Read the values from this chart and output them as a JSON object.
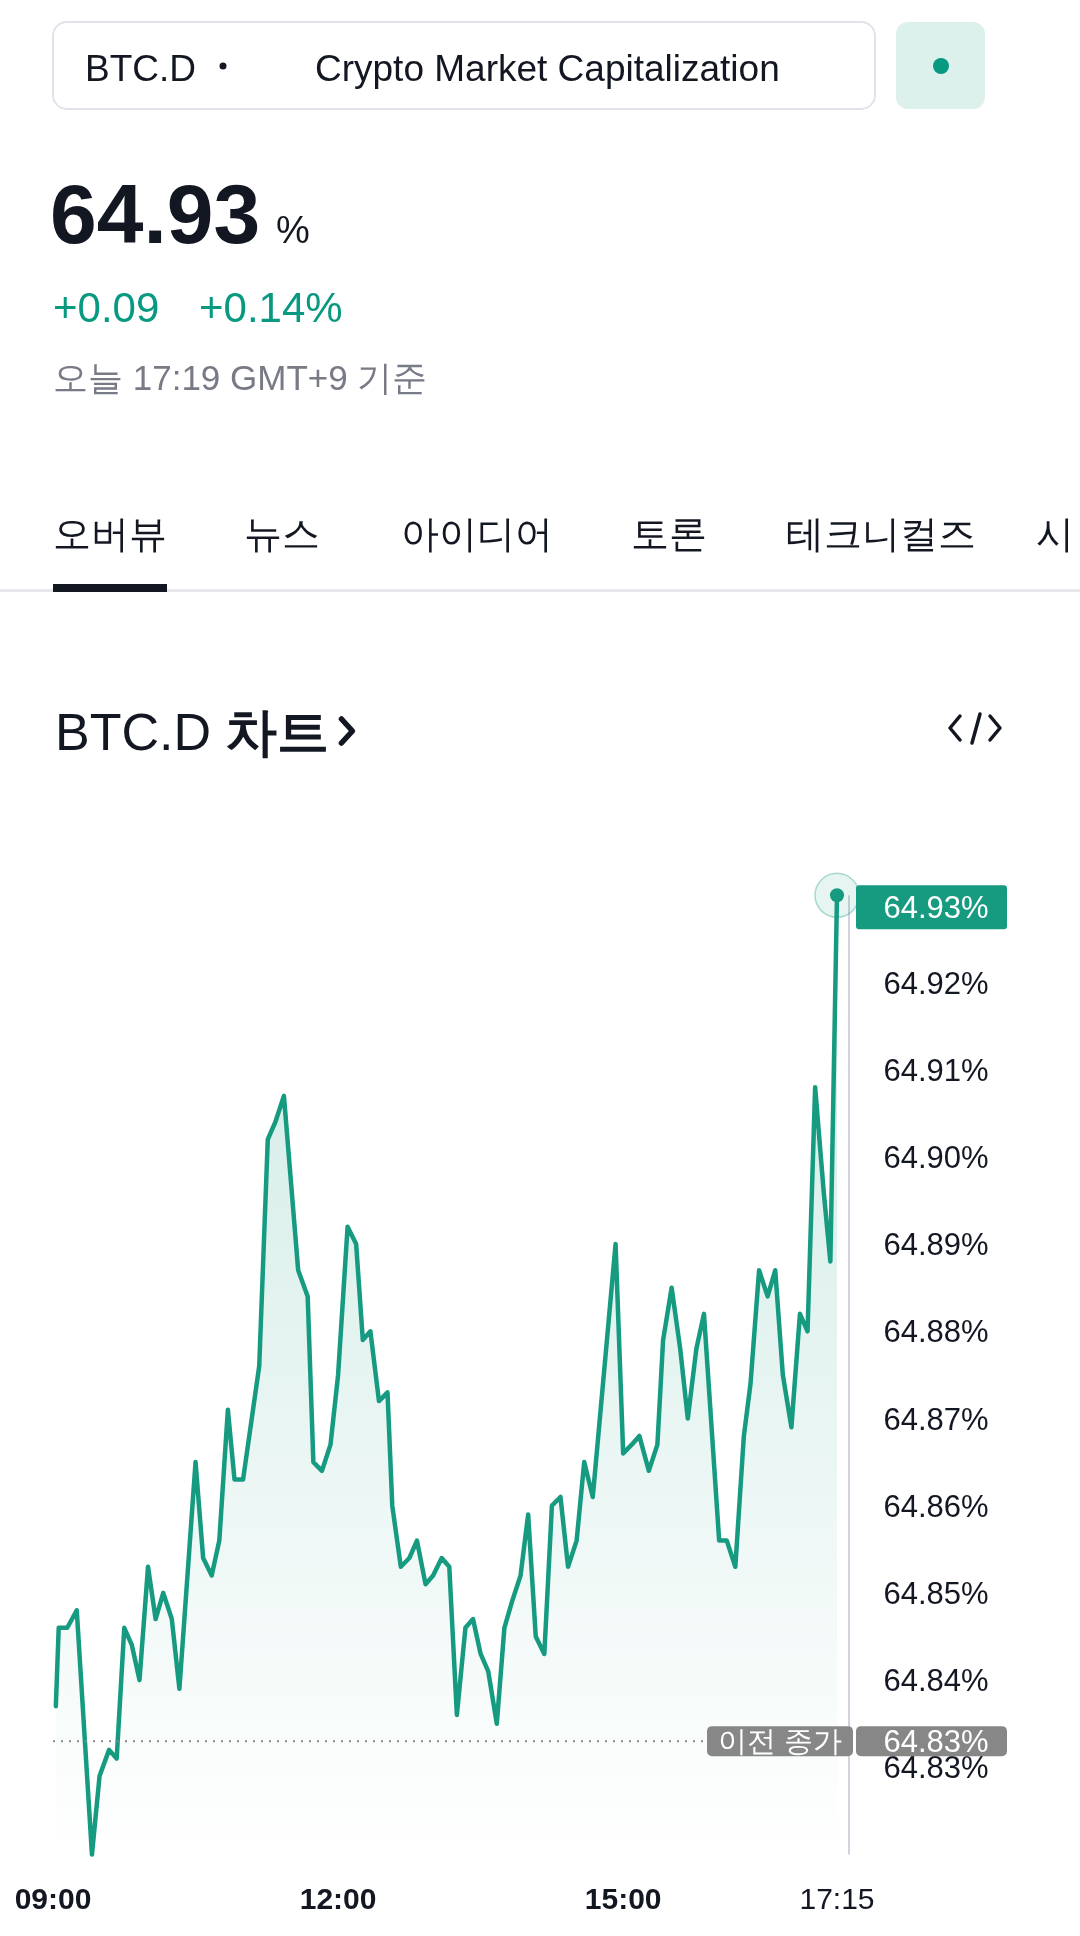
{
  "chart_data": {
    "type": "area",
    "title": "BTC.D **차트**",
    "x": [
      9.03,
      9.06,
      9.15,
      9.25,
      9.41,
      9.49,
      9.59,
      9.67,
      9.75,
      9.83,
      9.91,
      10.0,
      10.08,
      10.16,
      10.25,
      10.33,
      10.5,
      10.58,
      10.67,
      10.75,
      10.84,
      10.91,
      11.0,
      11.17,
      11.26,
      11.34,
      11.43,
      11.58,
      11.68,
      11.74,
      11.83,
      11.92,
      12.0,
      12.1,
      12.19,
      12.26,
      12.34,
      12.43,
      12.52,
      12.57,
      12.66,
      12.75,
      12.83,
      12.92,
      13.0,
      13.09,
      13.17,
      13.25,
      13.34,
      13.42,
      13.5,
      13.58,
      13.67,
      13.75,
      13.83,
      13.92,
      14.0,
      14.08,
      14.17,
      14.25,
      14.34,
      14.42,
      14.51,
      14.59,
      14.68,
      14.92,
      15.0,
      15.09,
      15.17,
      15.27,
      15.36,
      15.42,
      15.51,
      15.6,
      15.68,
      15.77,
      15.85,
      16.01,
      16.09,
      16.18,
      16.27,
      16.34,
      16.43,
      16.52,
      16.6,
      16.68,
      16.77,
      16.86,
      16.94,
      17.02,
      17.11,
      17.18,
      17.25
    ],
    "values": [
      64.837,
      64.846,
      64.846,
      64.848,
      64.82,
      64.829,
      64.832,
      64.831,
      64.846,
      64.844,
      64.84,
      64.853,
      64.847,
      64.85,
      64.847,
      64.839,
      64.865,
      64.854,
      64.852,
      64.856,
      64.871,
      64.863,
      64.863,
      64.876,
      64.902,
      64.904,
      64.907,
      64.887,
      64.884,
      64.865,
      64.864,
      64.867,
      64.875,
      64.892,
      64.89,
      64.879,
      64.88,
      64.872,
      64.873,
      64.86,
      64.853,
      64.854,
      64.856,
      64.851,
      64.852,
      64.854,
      64.853,
      64.836,
      64.846,
      64.847,
      64.843,
      64.841,
      64.835,
      64.846,
      64.849,
      64.852,
      64.859,
      64.845,
      64.843,
      64.86,
      64.861,
      64.853,
      64.856,
      64.865,
      64.861,
      64.89,
      64.866,
      64.867,
      64.868,
      64.864,
      64.867,
      64.879,
      64.885,
      64.878,
      64.87,
      64.878,
      64.882,
      64.856,
      64.856,
      64.853,
      64.868,
      64.874,
      64.887,
      64.884,
      64.887,
      64.875,
      64.869,
      64.882,
      64.88,
      64.908,
      64.896,
      64.888,
      64.93
    ],
    "color": "#169b81",
    "xlim": [
      9,
      17.25
    ],
    "ylim": [
      64.82,
      64.93
    ],
    "xticks": [
      {
        "value": 9,
        "label": "09:00"
      },
      {
        "value": 12,
        "label": "12:00"
      },
      {
        "value": 15,
        "label": "15:00"
      },
      {
        "value": 17.25,
        "label": "17:15"
      }
    ],
    "yticks": [
      {
        "value": 64.83,
        "label": "64.83%"
      },
      {
        "value": 64.84,
        "label": "64.84%"
      },
      {
        "value": 64.85,
        "label": "64.85%"
      },
      {
        "value": 64.86,
        "label": "64.86%"
      },
      {
        "value": 64.87,
        "label": "64.87%"
      },
      {
        "value": 64.88,
        "label": "64.88%"
      },
      {
        "value": 64.89,
        "label": "64.89%"
      },
      {
        "value": 64.9,
        "label": "64.90%"
      },
      {
        "value": 64.91,
        "label": "64.91%"
      },
      {
        "value": 64.92,
        "label": "64.92%"
      }
    ],
    "ref_lines": [
      {
        "axis": "y",
        "value": 64.833,
        "label": "이전 종가",
        "color": "#878787",
        "line_style": "dotted"
      }
    ],
    "annotations": [
      "BTC.D",
      "Crypto Market Capitalization",
      "64.93",
      "%",
      "+0.09",
      "+0.14%",
      "오늘 17:19 GMT+9 기준",
      "오버뷰",
      "뉴스",
      "아이디어",
      "토론",
      "테크니컬즈",
      "시",
      {
        "text": "64.93%",
        "x": 17.25,
        "y": 64.93
      },
      "64.83%"
    ]
  }
}
